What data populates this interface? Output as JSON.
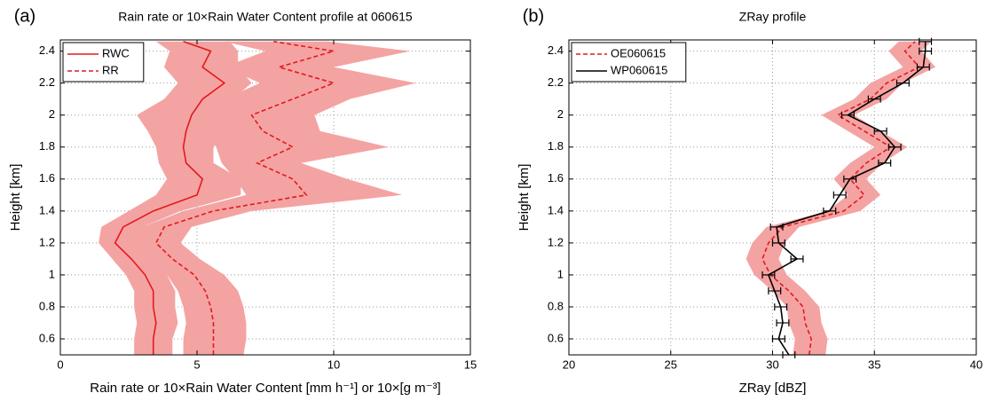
{
  "chart_data": [
    {
      "type": "line",
      "panel_label": "(a)",
      "title": "Rain rate or 10×Rain Water Content profile at 060615",
      "xlabel": "Rain rate or 10×Rain Water Content [mm h⁻¹] or 10×[g m⁻³]",
      "ylabel": "Height [km]",
      "y": [
        0.5,
        0.6,
        0.7,
        0.8,
        0.9,
        1,
        1.1,
        1.2,
        1.3,
        1.4,
        1.5,
        1.6,
        1.7,
        1.8,
        1.9,
        2,
        2.1,
        2.2,
        2.3,
        2.4,
        2.46
      ],
      "series": [
        {
          "name": "RWC",
          "color": "#e31a1c",
          "linestyle": "solid",
          "values": [
            3.4,
            3.4,
            3.5,
            3.4,
            3.4,
            3.1,
            2.6,
            2.0,
            2.3,
            3.4,
            5.0,
            5.2,
            4.6,
            4.5,
            4.6,
            4.8,
            5.2,
            6.0,
            5.2,
            5.5,
            4.5
          ],
          "band": {
            "color": "#f4a3a3",
            "lower": [
              2.7,
              2.7,
              2.8,
              2.7,
              2.7,
              2.4,
              1.9,
              1.4,
              1.5,
              2.5,
              3.5,
              3.9,
              3.6,
              3.5,
              3.2,
              2.8,
              3.8,
              4.3,
              3.8,
              4.0,
              3.5
            ],
            "upper": [
              4.1,
              4.1,
              4.3,
              4.2,
              4.2,
              3.9,
              3.4,
              2.7,
              3.0,
              4.4,
              6.6,
              6.6,
              5.6,
              5.6,
              6.2,
              6.6,
              6.3,
              7.0,
              6.5,
              6.5,
              6.2
            ]
          }
        },
        {
          "name": "RR",
          "color": "#e31a1c",
          "linestyle": "dashed",
          "values": [
            5.6,
            5.6,
            5.6,
            5.5,
            5.3,
            4.9,
            4.1,
            3.5,
            3.8,
            5.6,
            9.0,
            8.5,
            7.2,
            8.5,
            7.4,
            7.0,
            8.5,
            10.0,
            8.0,
            10.0,
            7.8
          ],
          "band": {
            "color": "#f4a3a3",
            "lower": [
              4.5,
              4.5,
              4.6,
              4.5,
              4.3,
              3.9,
              3.2,
              2.6,
              3.0,
              4.5,
              6.8,
              6.4,
              5.9,
              5.7,
              5.4,
              5.0,
              6.0,
              7.3,
              6.0,
              7.5,
              6.0
            ],
            "upper": [
              6.7,
              6.8,
              6.8,
              6.7,
              6.5,
              6.0,
              5.1,
              4.4,
              4.8,
              7.0,
              12.5,
              10.5,
              8.8,
              12.0,
              9.5,
              9.3,
              10.6,
              13.0,
              10.0,
              12.8,
              9.8
            ]
          }
        }
      ],
      "xlim": [
        0,
        15
      ],
      "xticks": [
        0,
        5,
        10,
        15
      ],
      "ylim": [
        0.5,
        2.47
      ],
      "yticks": [
        0.6,
        0.8,
        1,
        1.2,
        1.4,
        1.6,
        1.8,
        2,
        2.2,
        2.4
      ],
      "grid": true,
      "legend": "upper left"
    },
    {
      "type": "line",
      "panel_label": "(b)",
      "title": "ZRay profile",
      "xlabel": "ZRay [dBZ]",
      "ylabel": "Height [km]",
      "y": [
        0.5,
        0.6,
        0.7,
        0.8,
        0.9,
        1,
        1.1,
        1.2,
        1.3,
        1.4,
        1.5,
        1.6,
        1.7,
        1.8,
        1.9,
        2,
        2.1,
        2.2,
        2.3,
        2.4,
        2.46
      ],
      "series": [
        {
          "name": "OE060615",
          "color": "#e31a1c",
          "linestyle": "dashed",
          "values": [
            31.8,
            31.9,
            31.6,
            31.5,
            30.8,
            29.9,
            29.5,
            29.8,
            30.5,
            33.5,
            34.5,
            33.8,
            34.6,
            35.8,
            34.5,
            33.2,
            34.8,
            35.6,
            37.2,
            36.5,
            37.0
          ],
          "band": {
            "color": "#f4a3a3",
            "lower": [
              31.0,
              31.1,
              30.8,
              30.7,
              30.0,
              29.1,
              28.7,
              29.0,
              29.7,
              32.7,
              33.7,
              33.0,
              33.8,
              35.0,
              33.7,
              32.4,
              34.0,
              34.8,
              36.4,
              35.7,
              36.2
            ],
            "upper": [
              32.6,
              32.7,
              32.4,
              32.3,
              31.6,
              30.7,
              30.3,
              30.6,
              31.3,
              34.3,
              35.3,
              34.6,
              35.4,
              36.6,
              35.3,
              34.0,
              35.6,
              36.4,
              38.0,
              37.3,
              37.8
            ]
          }
        },
        {
          "name": "WP060615",
          "color": "#000000",
          "linestyle": "solid",
          "values": [
            30.8,
            30.3,
            30.5,
            30.4,
            30.1,
            29.8,
            31.2,
            30.3,
            30.2,
            32.8,
            33.3,
            33.8,
            35.5,
            36.0,
            35.3,
            33.7,
            35.0,
            36.4,
            37.4,
            37.5,
            37.5
          ],
          "errors": [
            0.3,
            0.3,
            0.3,
            0.3,
            0.3,
            0.3,
            0.3,
            0.3,
            0.3,
            0.3,
            0.3,
            0.3,
            0.3,
            0.3,
            0.3,
            0.3,
            0.3,
            0.3,
            0.3,
            0.3,
            0.3
          ]
        }
      ],
      "xlim": [
        20,
        40
      ],
      "xticks": [
        20,
        25,
        30,
        35,
        40
      ],
      "ylim": [
        0.5,
        2.47
      ],
      "yticks": [
        0.6,
        0.8,
        1,
        1.2,
        1.4,
        1.6,
        1.8,
        2,
        2.2,
        2.4
      ],
      "grid": true,
      "legend": "upper left"
    }
  ]
}
